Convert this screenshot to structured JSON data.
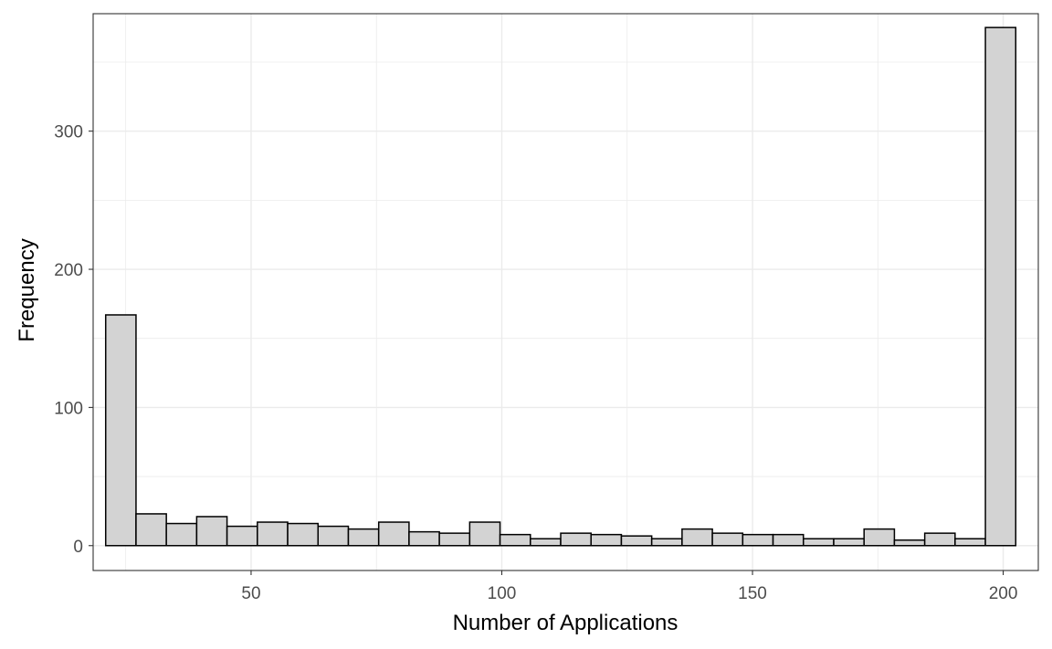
{
  "chart_data": {
    "type": "bar",
    "subtype": "histogram",
    "title": "",
    "xlabel": "Number of Applications",
    "ylabel": "Frequency",
    "xlim": [
      18.5,
      207
    ],
    "ylim": [
      -18,
      385
    ],
    "x_ticks": [
      50,
      100,
      150,
      200
    ],
    "y_ticks": [
      0,
      100,
      200,
      300
    ],
    "bin_width": 6.05,
    "bins": [
      {
        "x0": 21.0,
        "x1": 27.05,
        "count": 167
      },
      {
        "x0": 27.05,
        "x1": 33.1,
        "count": 23
      },
      {
        "x0": 33.1,
        "x1": 39.15,
        "count": 16
      },
      {
        "x0": 39.15,
        "x1": 45.2,
        "count": 21
      },
      {
        "x0": 45.2,
        "x1": 51.25,
        "count": 14
      },
      {
        "x0": 51.25,
        "x1": 57.3,
        "count": 17
      },
      {
        "x0": 57.3,
        "x1": 63.35,
        "count": 16
      },
      {
        "x0": 63.35,
        "x1": 69.4,
        "count": 14
      },
      {
        "x0": 69.4,
        "x1": 75.45,
        "count": 12
      },
      {
        "x0": 75.45,
        "x1": 81.5,
        "count": 17
      },
      {
        "x0": 81.5,
        "x1": 87.55,
        "count": 10
      },
      {
        "x0": 87.55,
        "x1": 93.6,
        "count": 9
      },
      {
        "x0": 93.6,
        "x1": 99.65,
        "count": 17
      },
      {
        "x0": 99.65,
        "x1": 105.7,
        "count": 8
      },
      {
        "x0": 105.7,
        "x1": 111.75,
        "count": 5
      },
      {
        "x0": 111.75,
        "x1": 117.8,
        "count": 9
      },
      {
        "x0": 117.8,
        "x1": 123.85,
        "count": 8
      },
      {
        "x0": 123.85,
        "x1": 129.9,
        "count": 7
      },
      {
        "x0": 129.9,
        "x1": 135.95,
        "count": 5
      },
      {
        "x0": 135.95,
        "x1": 142.0,
        "count": 12
      },
      {
        "x0": 142.0,
        "x1": 148.05,
        "count": 9
      },
      {
        "x0": 148.05,
        "x1": 154.1,
        "count": 8
      },
      {
        "x0": 154.1,
        "x1": 160.15,
        "count": 8
      },
      {
        "x0": 160.15,
        "x1": 166.2,
        "count": 5
      },
      {
        "x0": 166.2,
        "x1": 172.25,
        "count": 5
      },
      {
        "x0": 172.25,
        "x1": 178.3,
        "count": 12
      },
      {
        "x0": 178.3,
        "x1": 184.35,
        "count": 4
      },
      {
        "x0": 184.35,
        "x1": 190.4,
        "count": 9
      },
      {
        "x0": 190.4,
        "x1": 196.45,
        "count": 5
      },
      {
        "x0": 196.45,
        "x1": 202.5,
        "count": 375
      }
    ],
    "bar_fill": "#d3d3d3",
    "bar_stroke": "#000000",
    "grid": true,
    "grid_color": "#ebebeb",
    "panel_border_color": "#333333",
    "legend": "none"
  }
}
